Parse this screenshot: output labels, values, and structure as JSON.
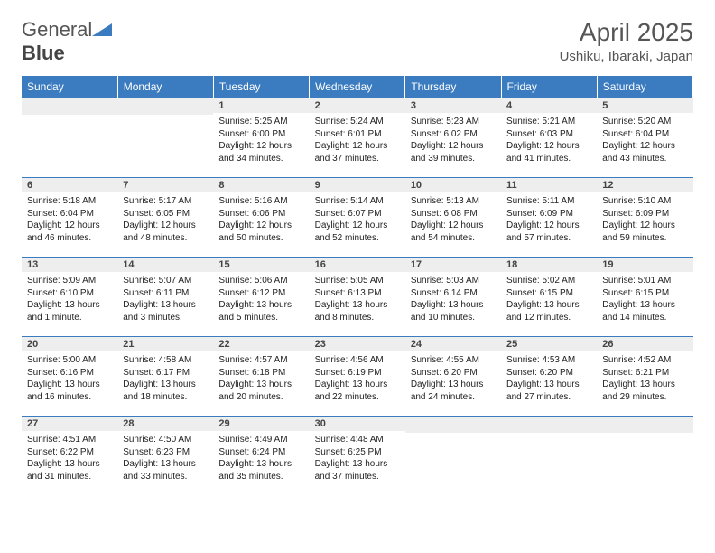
{
  "logo": {
    "text1": "General",
    "text2": "Blue"
  },
  "title": "April 2025",
  "location": "Ushiku, Ibaraki, Japan",
  "colors": {
    "header_bg": "#3b7bbf",
    "daynum_bg": "#eeeeee",
    "border": "#3b7bbf",
    "text": "#222222",
    "title": "#555555"
  },
  "weekdays": [
    "Sunday",
    "Monday",
    "Tuesday",
    "Wednesday",
    "Thursday",
    "Friday",
    "Saturday"
  ],
  "first_weekday": 2,
  "days": [
    {
      "n": 1,
      "r": "5:25 AM",
      "s": "6:00 PM",
      "d": "12 hours and 34 minutes."
    },
    {
      "n": 2,
      "r": "5:24 AM",
      "s": "6:01 PM",
      "d": "12 hours and 37 minutes."
    },
    {
      "n": 3,
      "r": "5:23 AM",
      "s": "6:02 PM",
      "d": "12 hours and 39 minutes."
    },
    {
      "n": 4,
      "r": "5:21 AM",
      "s": "6:03 PM",
      "d": "12 hours and 41 minutes."
    },
    {
      "n": 5,
      "r": "5:20 AM",
      "s": "6:04 PM",
      "d": "12 hours and 43 minutes."
    },
    {
      "n": 6,
      "r": "5:18 AM",
      "s": "6:04 PM",
      "d": "12 hours and 46 minutes."
    },
    {
      "n": 7,
      "r": "5:17 AM",
      "s": "6:05 PM",
      "d": "12 hours and 48 minutes."
    },
    {
      "n": 8,
      "r": "5:16 AM",
      "s": "6:06 PM",
      "d": "12 hours and 50 minutes."
    },
    {
      "n": 9,
      "r": "5:14 AM",
      "s": "6:07 PM",
      "d": "12 hours and 52 minutes."
    },
    {
      "n": 10,
      "r": "5:13 AM",
      "s": "6:08 PM",
      "d": "12 hours and 54 minutes."
    },
    {
      "n": 11,
      "r": "5:11 AM",
      "s": "6:09 PM",
      "d": "12 hours and 57 minutes."
    },
    {
      "n": 12,
      "r": "5:10 AM",
      "s": "6:09 PM",
      "d": "12 hours and 59 minutes."
    },
    {
      "n": 13,
      "r": "5:09 AM",
      "s": "6:10 PM",
      "d": "13 hours and 1 minute."
    },
    {
      "n": 14,
      "r": "5:07 AM",
      "s": "6:11 PM",
      "d": "13 hours and 3 minutes."
    },
    {
      "n": 15,
      "r": "5:06 AM",
      "s": "6:12 PM",
      "d": "13 hours and 5 minutes."
    },
    {
      "n": 16,
      "r": "5:05 AM",
      "s": "6:13 PM",
      "d": "13 hours and 8 minutes."
    },
    {
      "n": 17,
      "r": "5:03 AM",
      "s": "6:14 PM",
      "d": "13 hours and 10 minutes."
    },
    {
      "n": 18,
      "r": "5:02 AM",
      "s": "6:15 PM",
      "d": "13 hours and 12 minutes."
    },
    {
      "n": 19,
      "r": "5:01 AM",
      "s": "6:15 PM",
      "d": "13 hours and 14 minutes."
    },
    {
      "n": 20,
      "r": "5:00 AM",
      "s": "6:16 PM",
      "d": "13 hours and 16 minutes."
    },
    {
      "n": 21,
      "r": "4:58 AM",
      "s": "6:17 PM",
      "d": "13 hours and 18 minutes."
    },
    {
      "n": 22,
      "r": "4:57 AM",
      "s": "6:18 PM",
      "d": "13 hours and 20 minutes."
    },
    {
      "n": 23,
      "r": "4:56 AM",
      "s": "6:19 PM",
      "d": "13 hours and 22 minutes."
    },
    {
      "n": 24,
      "r": "4:55 AM",
      "s": "6:20 PM",
      "d": "13 hours and 24 minutes."
    },
    {
      "n": 25,
      "r": "4:53 AM",
      "s": "6:20 PM",
      "d": "13 hours and 27 minutes."
    },
    {
      "n": 26,
      "r": "4:52 AM",
      "s": "6:21 PM",
      "d": "13 hours and 29 minutes."
    },
    {
      "n": 27,
      "r": "4:51 AM",
      "s": "6:22 PM",
      "d": "13 hours and 31 minutes."
    },
    {
      "n": 28,
      "r": "4:50 AM",
      "s": "6:23 PM",
      "d": "13 hours and 33 minutes."
    },
    {
      "n": 29,
      "r": "4:49 AM",
      "s": "6:24 PM",
      "d": "13 hours and 35 minutes."
    },
    {
      "n": 30,
      "r": "4:48 AM",
      "s": "6:25 PM",
      "d": "13 hours and 37 minutes."
    }
  ],
  "labels": {
    "sunrise": "Sunrise:",
    "sunset": "Sunset:",
    "daylight": "Daylight:"
  }
}
